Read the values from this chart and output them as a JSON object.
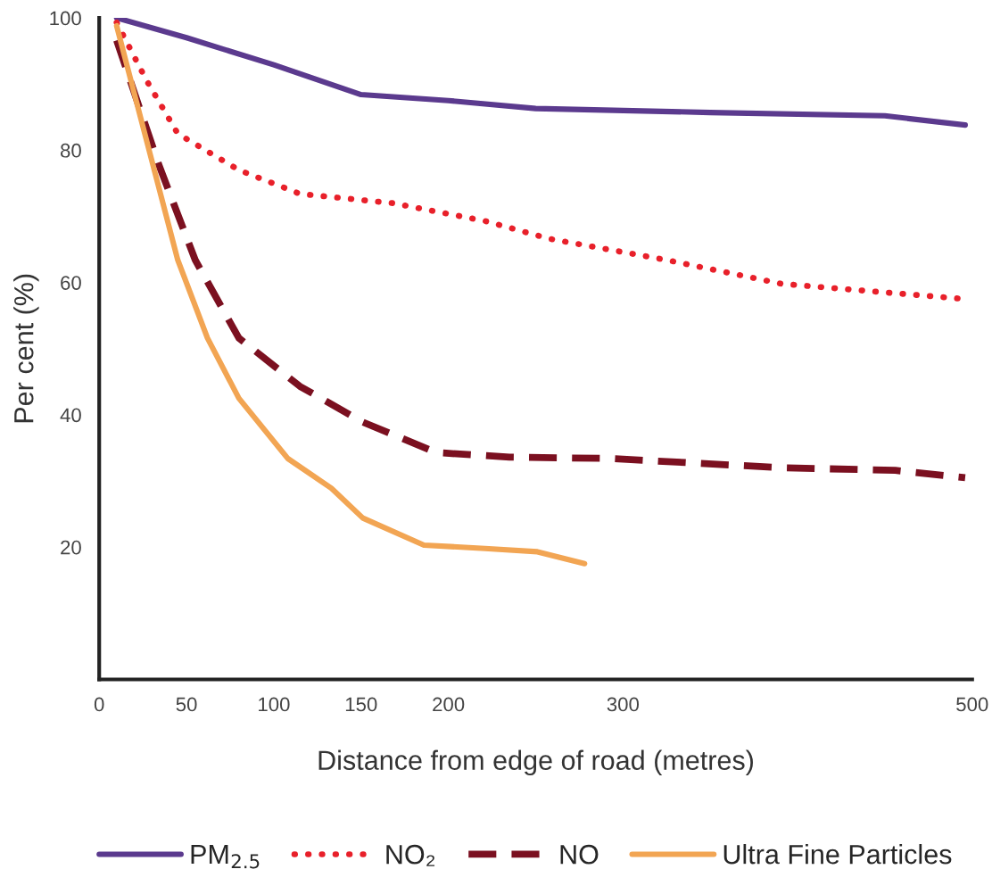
{
  "chart_data": {
    "type": "line",
    "xlabel": "Distance from edge of road (metres)",
    "ylabel": "Per cent (%)",
    "xlim": [
      0,
      500
    ],
    "xticks": [
      0,
      50,
      100,
      150,
      200,
      300,
      500
    ],
    "ylim": [
      0,
      100
    ],
    "yticks": [
      20,
      40,
      60,
      80,
      100
    ],
    "grid": false,
    "legend": "bottom",
    "marker": "none",
    "series": [
      {
        "name": "PM$_{2.5}$",
        "color": "#5b3a8e",
        "line_style": "solid",
        "x": [
          10,
          50,
          100,
          150,
          200,
          250,
          350,
          450,
          496
        ],
        "values": [
          100,
          97,
          92.9,
          88.4,
          87.5,
          86.3,
          85.7,
          85.2,
          83.8
        ]
      },
      {
        "name": "NO₂",
        "color": "#e8202a",
        "line_style": "dotted",
        "x": [
          10,
          27,
          45,
          80,
          115,
          168,
          221,
          258,
          325,
          391,
          496
        ],
        "values": [
          99.3,
          90.6,
          82.5,
          77,
          73.4,
          72,
          69.3,
          66.6,
          63.4,
          59.8,
          57.5
        ]
      },
      {
        "name": "NO",
        "color": "#7b1020",
        "line_style": "dashed",
        "x": [
          10,
          34,
          55,
          80,
          115,
          151,
          193,
          235,
          292,
          391,
          456,
          496
        ],
        "values": [
          96.6,
          77.9,
          63.4,
          51.6,
          44.3,
          38.9,
          34.3,
          33.6,
          33.4,
          32,
          31.6,
          30.5
        ]
      },
      {
        "name": "Ultra Fine Particles",
        "color": "#f2a553",
        "line_style": "solid",
        "x": [
          10,
          27,
          45,
          62,
          80,
          108,
          133,
          151,
          186,
          221,
          251,
          278
        ],
        "values": [
          98.8,
          81.6,
          63.4,
          51.6,
          42.5,
          33.4,
          28.9,
          24.4,
          20.3,
          19.8,
          19.3,
          17.5
        ]
      }
    ]
  }
}
